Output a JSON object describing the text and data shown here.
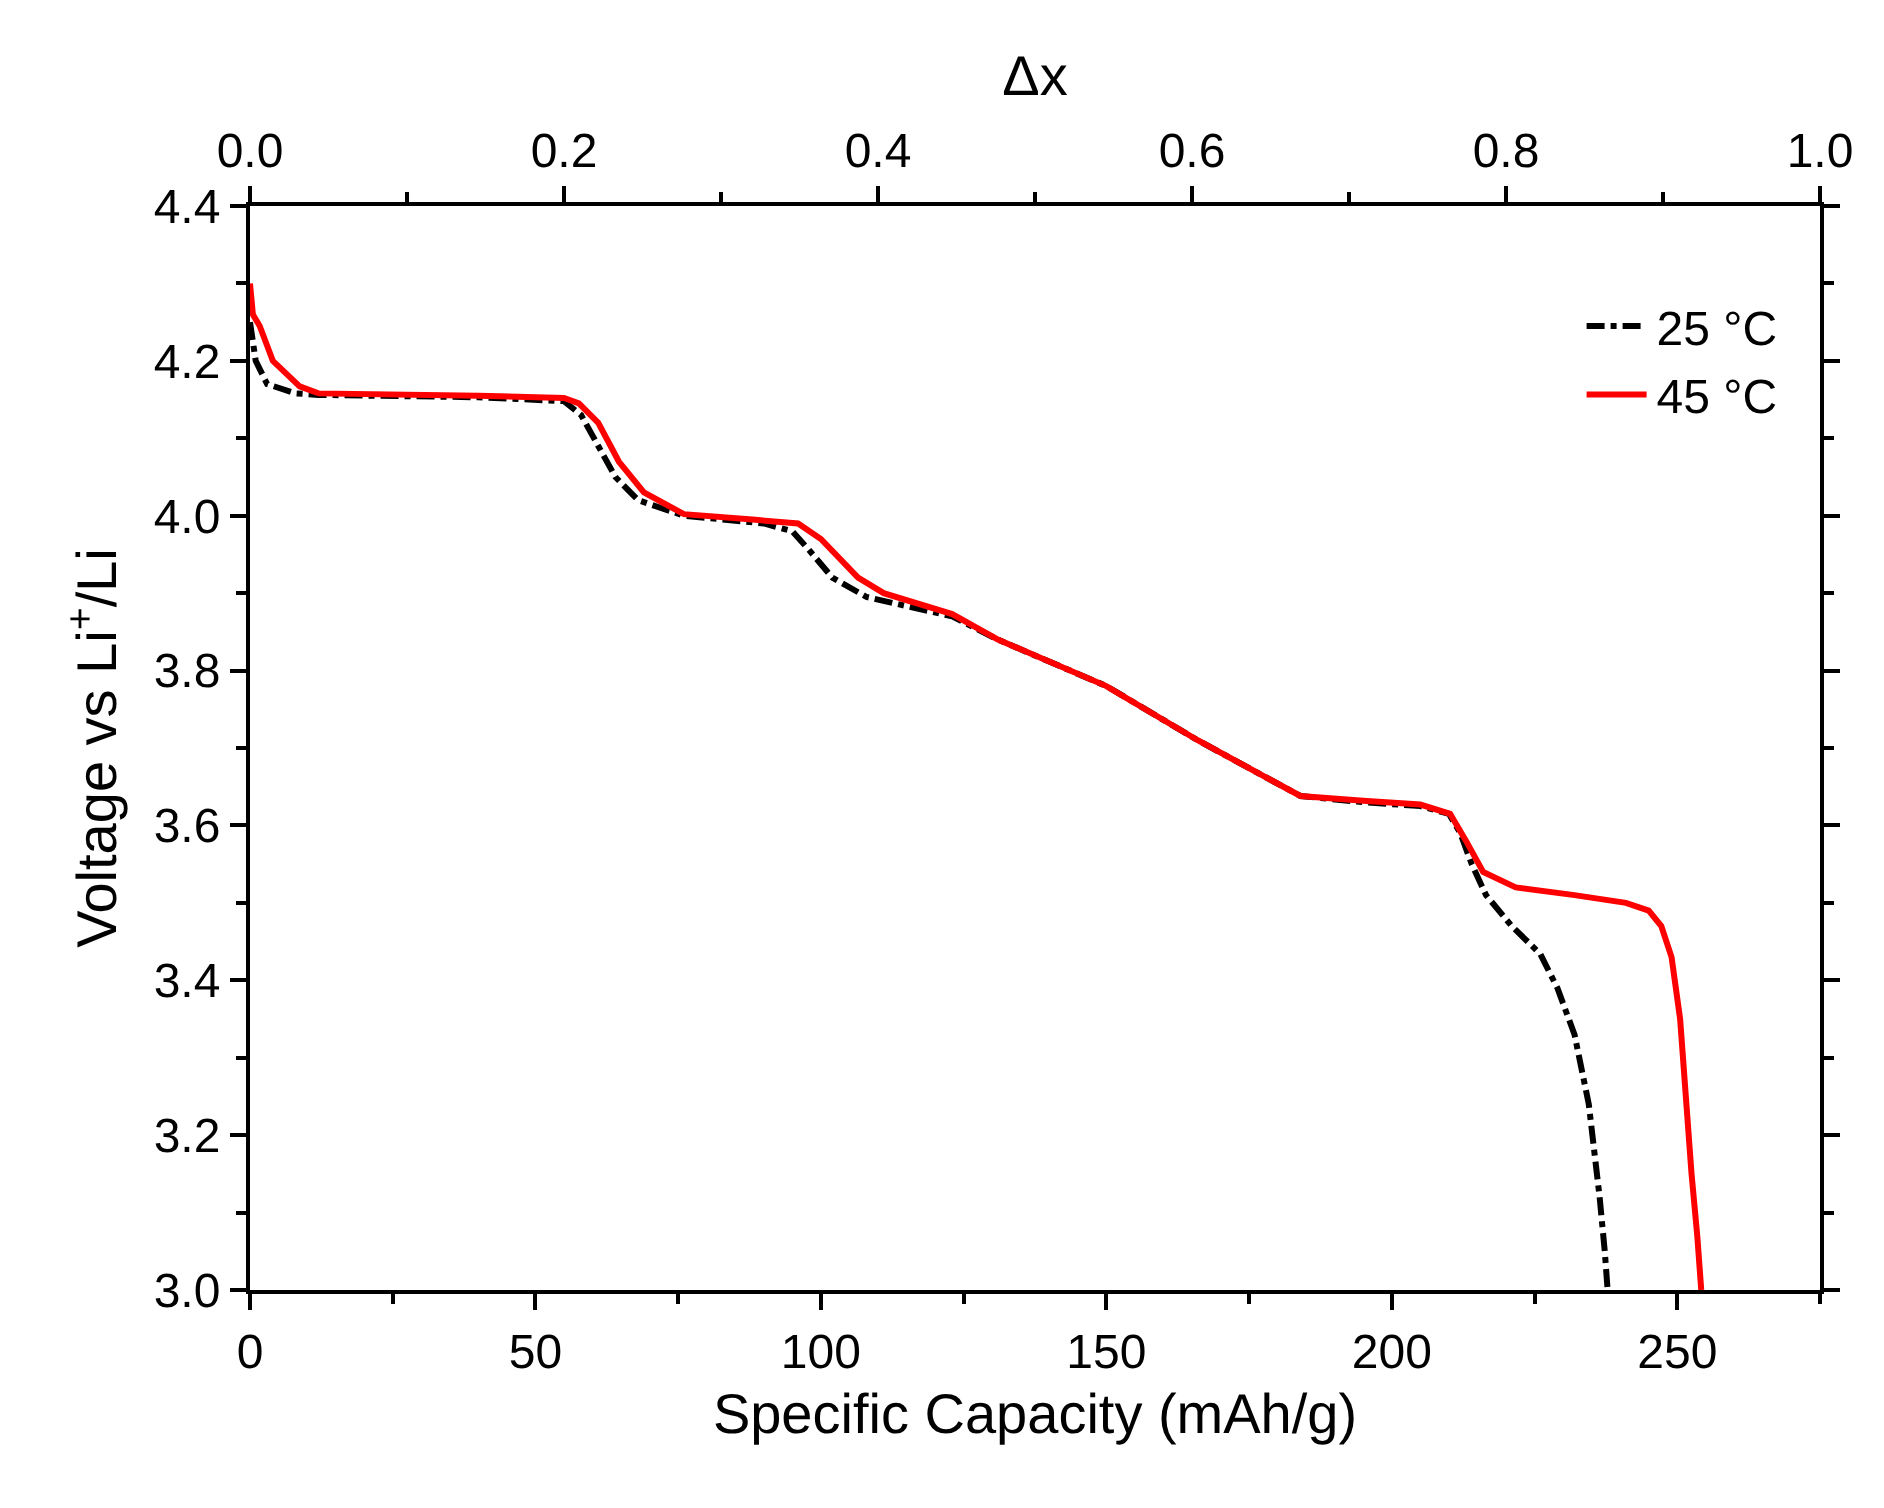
{
  "chart_data": {
    "type": "line",
    "xlabel": "Specific Capacity (mAh/g)",
    "ylabel": "Voltage vs Li$^{+}$/Li",
    "x2label": "Δx",
    "xlim": [
      0,
      275
    ],
    "xticks": [
      0,
      50,
      100,
      150,
      200,
      250
    ],
    "x2lim": [
      0,
      1
    ],
    "x2ticks": [
      {
        "value": 0,
        "label": "0.0"
      },
      {
        "value": 0.2,
        "label": "0.2"
      },
      {
        "value": 0.4,
        "label": "0.4"
      },
      {
        "value": 0.6,
        "label": "0.6"
      },
      {
        "value": 0.8,
        "label": "0.8"
      },
      {
        "value": 1,
        "label": "1.0"
      }
    ],
    "ylim": [
      3.0,
      4.4
    ],
    "yticks": [
      {
        "value": 3,
        "label": "3.0"
      },
      {
        "value": 3.2,
        "label": "3.2"
      },
      {
        "value": 3.4,
        "label": "3.4"
      },
      {
        "value": 3.6,
        "label": "3.6"
      },
      {
        "value": 3.8,
        "label": "3.8"
      },
      {
        "value": 4,
        "label": "4.0"
      },
      {
        "value": 4.2,
        "label": "4.2"
      },
      {
        "value": 4.4,
        "label": "4.4"
      }
    ],
    "grid": false,
    "legend": "top right",
    "marker": "none",
    "series": [
      {
        "name": "25 °C",
        "color": "#000000",
        "line_style": "dashdot",
        "x": [
          0,
          1,
          3,
          8,
          12,
          40,
          55,
          58,
          61,
          64,
          68,
          76,
          90,
          95,
          98,
          102,
          108,
          123,
          131,
          150,
          166,
          184,
          195,
          205,
          210,
          212,
          214,
          216.5,
          221,
          226,
          229,
          232,
          234.5,
          236.4,
          237.3,
          237.8
        ],
        "values": [
          4.25,
          4.2,
          4.17,
          4.158,
          4.156,
          4.153,
          4.148,
          4.13,
          4.09,
          4.05,
          4.02,
          4.0,
          3.99,
          3.98,
          3.955,
          3.92,
          3.895,
          3.87,
          3.84,
          3.78,
          3.71,
          3.638,
          3.63,
          3.625,
          3.615,
          3.59,
          3.55,
          3.51,
          3.47,
          3.434,
          3.39,
          3.33,
          3.24,
          3.12,
          3.05,
          3.0
        ]
      },
      {
        "name": "45 °C",
        "color": "#ff0000",
        "line_style": "solid",
        "x": [
          0,
          0.5,
          1.7,
          4,
          8.7,
          12,
          40,
          55,
          57.6,
          61,
          64.6,
          69,
          76,
          88,
          96,
          100,
          106.5,
          111,
          123,
          131,
          150,
          166,
          184,
          195,
          205,
          210.2,
          213,
          216,
          221.7,
          232,
          241,
          245,
          247.2,
          249,
          250.5,
          251.5,
          252.5,
          253.5,
          254.2
        ],
        "values": [
          4.3,
          4.26,
          4.245,
          4.2,
          4.167,
          4.158,
          4.155,
          4.152,
          4.145,
          4.12,
          4.07,
          4.03,
          4.002,
          3.995,
          3.99,
          3.97,
          3.92,
          3.9,
          3.873,
          3.84,
          3.78,
          3.71,
          3.638,
          3.632,
          3.627,
          3.615,
          3.58,
          3.54,
          3.52,
          3.51,
          3.5,
          3.49,
          3.47,
          3.43,
          3.35,
          3.25,
          3.15,
          3.07,
          3.0
        ]
      }
    ]
  }
}
